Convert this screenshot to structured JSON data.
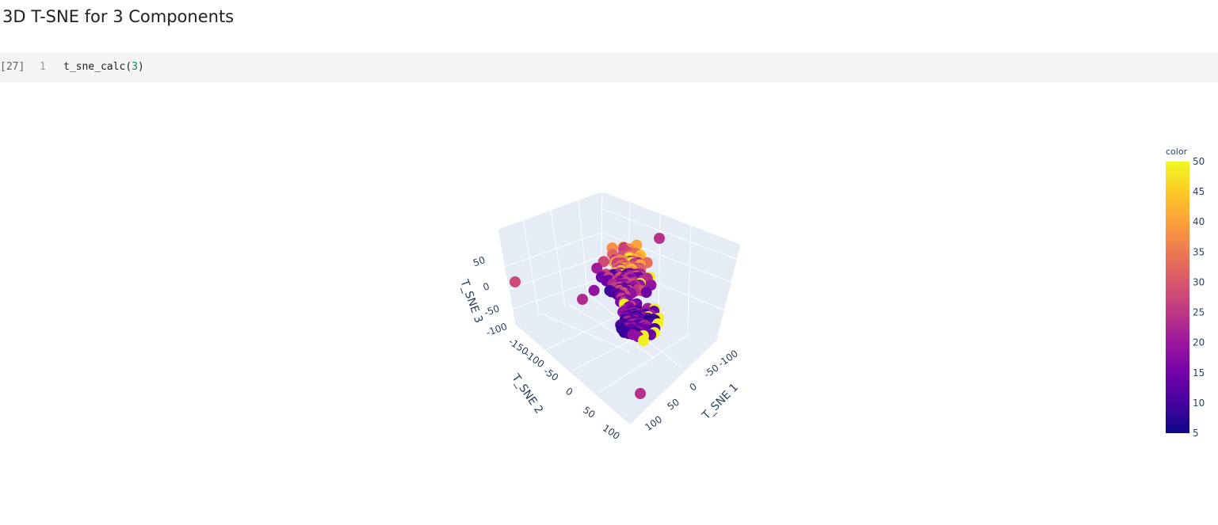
{
  "notebook": {
    "heading": "3D T-SNE for 3 Components",
    "cell": {
      "execution_count": "[27]",
      "line_number": "1",
      "code_prefix": "t_sne_calc(",
      "code_arg": "3",
      "code_suffix": ")"
    }
  },
  "chart_data": {
    "type": "scatter",
    "projection": "3d",
    "axes": {
      "x": {
        "title": "T_SNE 1",
        "ticks": [
          "-100",
          "-50",
          "0",
          "50",
          "100"
        ]
      },
      "y": {
        "title": "T_SNE 2",
        "ticks": [
          "-150",
          "-100",
          "-50",
          "0",
          "50",
          "100"
        ]
      },
      "z": {
        "title": "T_SNE 3",
        "ticks": [
          "50",
          "0",
          "-50",
          "-100"
        ]
      }
    },
    "colorbar": {
      "title": "color",
      "colorscale": "plasma",
      "range": [
        5,
        50
      ],
      "ticks": [
        "50",
        "45",
        "40",
        "35",
        "30",
        "25",
        "20",
        "15",
        "10",
        "5"
      ]
    },
    "background": {
      "pane": "#e5ecf6",
      "grid": "#ffffff"
    },
    "points_note": "dense cluster of several hundred points; color mapped to value 5-50",
    "outliers": [
      {
        "label": "outlier-left",
        "color_value": 28
      },
      {
        "label": "outlier-top",
        "color_value": 24
      },
      {
        "label": "outlier-bottom",
        "color_value": 24
      },
      {
        "label": "outlier-mid-left",
        "color_value": 23
      }
    ]
  }
}
